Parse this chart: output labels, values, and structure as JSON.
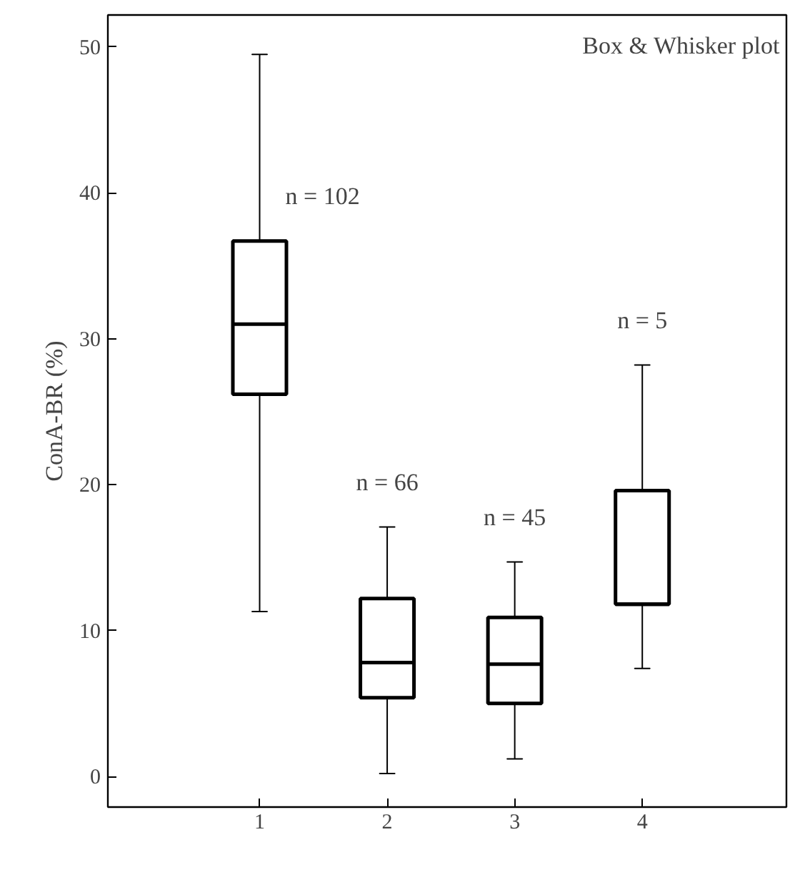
{
  "chart_data": {
    "type": "box",
    "title": "Box & Whisker plot",
    "ylabel": "ConA-BR (%)",
    "categories": [
      "1",
      "2",
      "3",
      "4"
    ],
    "boxes": [
      {
        "low": 11.3,
        "q1": 26.2,
        "median": 31.0,
        "q3": 36.7,
        "high": 49.5
      },
      {
        "low": 0.2,
        "q1": 5.4,
        "median": 7.8,
        "q3": 12.2,
        "high": 17.1
      },
      {
        "low": 1.2,
        "q1": 5.0,
        "median": 7.7,
        "q3": 10.9,
        "high": 14.7
      },
      {
        "low": 7.4,
        "q1": 11.8,
        "median": 11.8,
        "q3": 19.6,
        "high": 28.2
      }
    ],
    "color": "#ffffff",
    "ylim": [
      -2.1,
      52.2
    ],
    "yticks": [
      0,
      10,
      20,
      30,
      40,
      50
    ],
    "grid": false,
    "annotations": [
      "n = 102",
      "n = 66",
      "n = 45",
      "n = 5"
    ]
  }
}
